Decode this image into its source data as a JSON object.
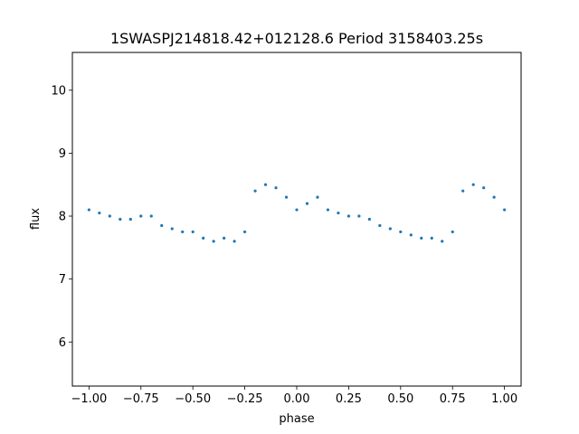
{
  "chart_data": {
    "type": "scatter",
    "title": "1SWASPJ214818.42+012128.6 Period 3158403.25s",
    "xlabel": "phase",
    "ylabel": "flux",
    "xlim": [
      -1.08,
      1.08
    ],
    "ylim": [
      5.3,
      10.6
    ],
    "xticks": [
      -1.0,
      -0.75,
      -0.5,
      -0.25,
      0.0,
      0.25,
      0.5,
      0.75,
      1.0
    ],
    "xtick_labels": [
      "−1.00",
      "−0.75",
      "−0.50",
      "−0.25",
      "0.00",
      "0.25",
      "0.50",
      "0.75",
      "1.00"
    ],
    "yticks": [
      6,
      7,
      8,
      9,
      10
    ],
    "ytick_labels": [
      "6",
      "7",
      "8",
      "9",
      "10"
    ],
    "grid": false,
    "legend": "none",
    "marker_color": "#1f77b4",
    "series": [
      {
        "x": [
          -1.0,
          -0.95,
          -0.9,
          -0.85,
          -0.8,
          -0.75,
          -0.7,
          -0.65,
          -0.6,
          -0.55,
          -0.5,
          -0.45,
          -0.4,
          -0.35,
          -0.3,
          -0.25,
          -0.2,
          -0.15,
          -0.1,
          -0.05,
          0.0,
          0.05,
          0.1,
          0.15,
          0.2,
          0.25,
          0.3,
          0.35,
          0.4,
          0.45,
          0.5,
          0.55,
          0.6,
          0.65,
          0.7,
          0.75,
          0.8,
          0.85,
          0.9,
          0.95,
          1.0
        ],
        "y": [
          8.1,
          8.05,
          8.0,
          7.95,
          7.95,
          8.0,
          8.0,
          7.85,
          7.8,
          7.75,
          7.75,
          7.65,
          7.6,
          7.65,
          7.6,
          7.75,
          8.4,
          8.5,
          8.45,
          8.3,
          8.1,
          8.2,
          8.3,
          8.1,
          8.05,
          8.0,
          8.0,
          7.95,
          7.85,
          7.8,
          7.75,
          7.7,
          7.65,
          7.65,
          7.6,
          7.75,
          8.4,
          8.5,
          8.45,
          8.3,
          8.1
        ]
      }
    ]
  }
}
